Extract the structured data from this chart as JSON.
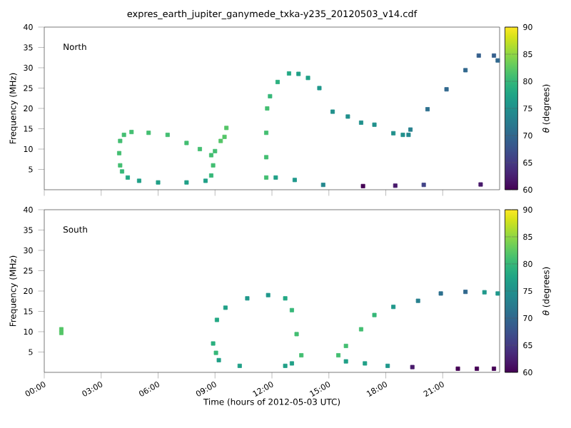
{
  "chart_data": [
    {
      "type": "scatter",
      "title": "expres_earth_jupiter_ganymede_txka-y235_20120503_v14.cdf",
      "ylabel": "Frequency (MHz)",
      "clabel": "*θ* (degrees)",
      "annotations": [
        "North"
      ],
      "marker": "square",
      "tick_labels": "y",
      "xlim": [
        0,
        24
      ],
      "xticks": [
        {
          "value": 0,
          "label": null
        },
        {
          "value": 3,
          "label": null
        },
        {
          "value": 6,
          "label": null
        },
        {
          "value": 9,
          "label": null
        },
        {
          "value": 12,
          "label": null
        },
        {
          "value": 15,
          "label": null
        },
        {
          "value": 18,
          "label": null
        },
        {
          "value": 21,
          "label": null
        }
      ],
      "ylim": [
        0,
        40
      ],
      "yticks": [
        5,
        10,
        15,
        20,
        25,
        30,
        35,
        40
      ],
      "clim": [
        60,
        90
      ],
      "cticks": [
        60,
        65,
        70,
        75,
        80,
        85,
        90
      ],
      "series": [
        {
          "x": [
            4.0,
            3.95,
            4.0,
            4.1,
            4.4,
            5.0,
            6.0,
            7.5,
            8.5,
            8.8,
            8.9,
            8.8,
            8.2,
            7.5,
            6.5,
            5.5,
            4.6,
            4.2,
            9.0,
            9.3,
            9.6,
            9.5,
            11.7,
            11.7,
            11.7,
            11.75,
            11.9,
            12.3,
            12.9,
            13.4,
            13.9,
            14.5,
            15.2,
            16.0,
            16.7,
            17.4,
            18.4,
            18.9,
            19.2,
            19.3,
            20.2,
            21.2,
            22.2,
            22.9,
            23.7,
            23.9,
            12.2,
            13.2,
            14.7,
            16.8,
            18.5,
            20.0,
            23.0
          ],
          "values": [
            12,
            9,
            6,
            4.5,
            3,
            2.2,
            1.8,
            1.8,
            2.2,
            3.5,
            6,
            8.5,
            10,
            11.5,
            13.5,
            14,
            14.2,
            13.5,
            9.5,
            12,
            15.2,
            13,
            3,
            8,
            14,
            20,
            23,
            26.5,
            28.6,
            28.5,
            27.5,
            25,
            19.2,
            18,
            16.5,
            16,
            13.9,
            13.5,
            13.5,
            14.8,
            19.8,
            24.7,
            29.4,
            33,
            33,
            31.8,
            3,
            2.4,
            1.2,
            0.9,
            1,
            1.2,
            1.3
          ],
          "cvalues": [
            81,
            81,
            81,
            80,
            78,
            77,
            77,
            77,
            77,
            80,
            81,
            81,
            81,
            81,
            81,
            81,
            81,
            81,
            81,
            82,
            82,
            82,
            81,
            81,
            81,
            81,
            80,
            79,
            78,
            77,
            77,
            76,
            75,
            75,
            75,
            75,
            75,
            75,
            74,
            73,
            71,
            70,
            70,
            69,
            69,
            70,
            77,
            76,
            74,
            60,
            62,
            66,
            62
          ]
        }
      ]
    },
    {
      "type": "scatter",
      "xlabel": "Time (hours of 2012-05-03 UTC)",
      "ylabel": "Frequency (MHz)",
      "clabel": "*θ* (degrees)",
      "annotations": [
        "South"
      ],
      "marker": "square",
      "xlim": [
        0,
        24
      ],
      "xticks": [
        {
          "value": 0,
          "label": "00:00"
        },
        {
          "value": 3,
          "label": "03:00"
        },
        {
          "value": 6,
          "label": "06:00"
        },
        {
          "value": 9,
          "label": "09:00"
        },
        {
          "value": 12,
          "label": "12:00"
        },
        {
          "value": 15,
          "label": "15:00"
        },
        {
          "value": 18,
          "label": "18:00"
        },
        {
          "value": 21,
          "label": "21:00"
        }
      ],
      "ylim": [
        0,
        40
      ],
      "yticks": [
        5,
        10,
        15,
        20,
        25,
        30,
        35,
        40
      ],
      "clim": [
        60,
        90
      ],
      "cticks": [
        60,
        65,
        70,
        75,
        80,
        85,
        90
      ],
      "series": [
        {
          "x": [
            0.9,
            0.9,
            9.05,
            8.9,
            9.1,
            9.55,
            10.7,
            11.8,
            12.7,
            13.05,
            13.3,
            13.55,
            13.05,
            12.7,
            10.3,
            9.2,
            15.5,
            15.9,
            16.7,
            17.4,
            18.4,
            19.7,
            20.9,
            22.2,
            23.2,
            23.9,
            15.9,
            16.9,
            18.1,
            19.4,
            21.8,
            22.8,
            23.7
          ],
          "values": [
            9.7,
            10.6,
            4.8,
            7.1,
            12.9,
            15.9,
            18.2,
            19,
            18.2,
            15.3,
            9.4,
            4.2,
            2.2,
            1.6,
            1.6,
            3,
            4.2,
            6.5,
            10.6,
            14.1,
            16.1,
            17.6,
            19.4,
            19.8,
            19.7,
            19.4,
            2.7,
            2.2,
            1.6,
            1.3,
            0.9,
            0.9,
            0.9
          ],
          "cvalues": [
            82,
            82,
            80,
            79,
            78,
            77,
            76,
            76,
            78,
            80,
            81,
            81,
            77,
            77,
            77,
            77,
            81,
            81,
            81,
            80,
            76,
            73,
            71,
            70,
            76,
            76,
            77,
            77,
            76,
            62,
            60,
            60,
            60
          ]
        }
      ]
    }
  ]
}
